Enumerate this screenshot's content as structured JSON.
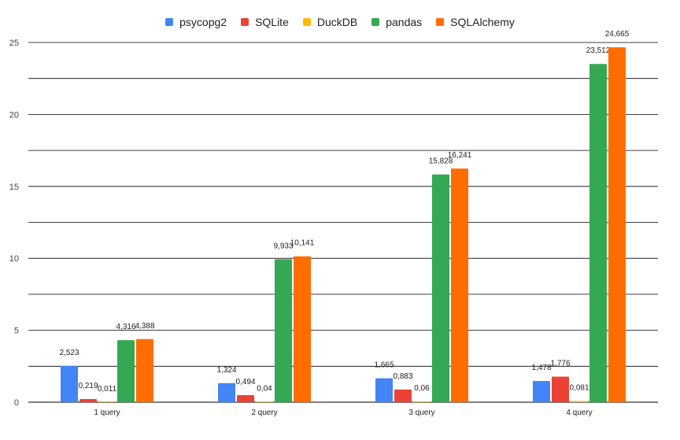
{
  "chart_data": {
    "type": "bar",
    "title": "",
    "xlabel": "",
    "ylabel": "",
    "categories": [
      "1 query",
      "2 query",
      "3 query",
      "4 query"
    ],
    "series": [
      {
        "name": "psycopg2",
        "color": "#4285f4",
        "values": [
          2.523,
          1.324,
          1.665,
          1.478
        ],
        "labels": [
          "2,523",
          "1,324",
          "1,665",
          "1,478"
        ]
      },
      {
        "name": "SQLite",
        "color": "#ea4335",
        "values": [
          0.219,
          0.494,
          0.883,
          1.776
        ],
        "labels": [
          "0,219",
          "0,494",
          "0,883",
          "1,776"
        ]
      },
      {
        "name": "DuckDB",
        "color": "#fbbc04",
        "values": [
          0.011,
          0.04,
          0.06,
          0.081
        ],
        "labels": [
          "0,011",
          "0,04",
          "0,06",
          "0,081"
        ]
      },
      {
        "name": "pandas",
        "color": "#34a853",
        "values": [
          4.316,
          9.933,
          15.828,
          23.512
        ],
        "labels": [
          "4,316",
          "9,933",
          "15,828",
          "23,512"
        ]
      },
      {
        "name": "SQLAlchemy",
        "color": "#ff6d01",
        "values": [
          4.388,
          10.141,
          16.241,
          24.665
        ],
        "labels": [
          "4,388",
          "10,141",
          "16,241",
          "24,665"
        ]
      }
    ],
    "ylim": [
      0,
      25
    ],
    "yticks": [
      "0",
      "5",
      "10",
      "15",
      "20",
      "25"
    ],
    "grid": true,
    "legend_position": "top-center"
  }
}
